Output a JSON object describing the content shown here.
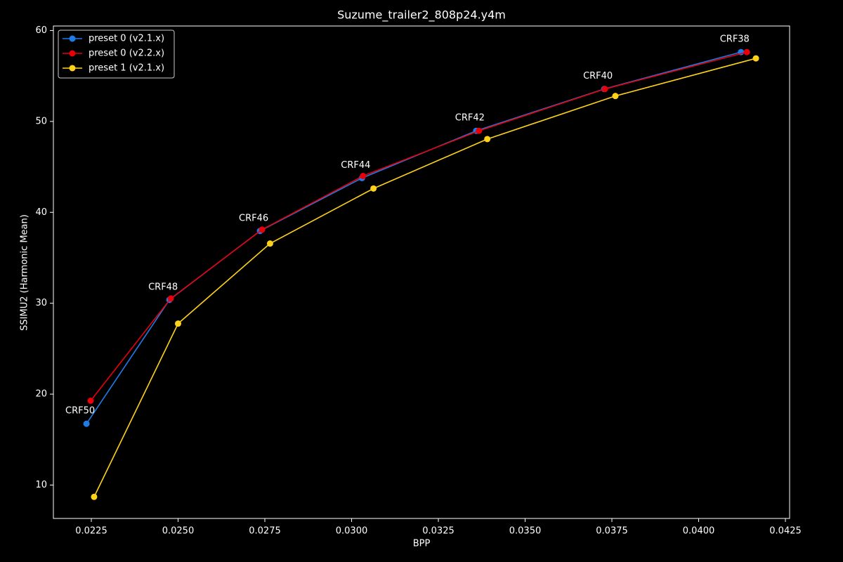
{
  "chart_data": {
    "type": "line",
    "title": "Suzume_trailer2_808p24.y4m",
    "x_label": "BPP",
    "y_label": "SSIMU2 (Harmonic Mean)",
    "xlim": [
      0.021407,
      0.042621
    ],
    "ylim": [
      6.325,
      60.5
    ],
    "xticks": [
      0.0225,
      {
        "value": 0.025,
        "label": "0.0250"
      },
      0.0275,
      {
        "value": 0.03,
        "label": "0.0300"
      },
      0.0325,
      {
        "value": 0.035,
        "label": "0.0350"
      },
      0.0375,
      {
        "value": 0.04,
        "label": "0.0400"
      },
      0.0425
    ],
    "yticks": [
      10,
      20,
      30,
      40,
      50,
      60
    ],
    "legend": "upper left",
    "point_labels": [
      "CRF50",
      "CRF48",
      "CRF46",
      "CRF44",
      "CRF42",
      "CRF40",
      "CRF38"
    ],
    "series": [
      {
        "name": "preset 0 (v2.1.x)",
        "color": "#1f7be8",
        "x": [
          0.02236,
          0.02475,
          0.02736,
          0.0303,
          0.03359,
          0.03728,
          0.04122
        ],
        "values": [
          16.74,
          30.37,
          37.95,
          43.77,
          48.97,
          53.57,
          57.63
        ]
      },
      {
        "name": "preset 0 (v2.2.x)",
        "color": "#e8000b",
        "x": [
          0.02248,
          0.02479,
          0.02742,
          0.03033,
          0.03367,
          0.0373,
          0.04139
        ],
        "values": [
          19.27,
          30.52,
          38.1,
          44.0,
          48.97,
          53.57,
          57.63
        ]
      },
      {
        "name": "preset 1 (v2.1.x)",
        "color": "#ffd21a",
        "x": [
          0.02258,
          0.025,
          0.02765,
          0.03063,
          0.03391,
          0.0376,
          0.04165
        ],
        "values": [
          8.7,
          27.76,
          36.57,
          42.62,
          48.06,
          52.8,
          56.94
        ]
      }
    ]
  }
}
